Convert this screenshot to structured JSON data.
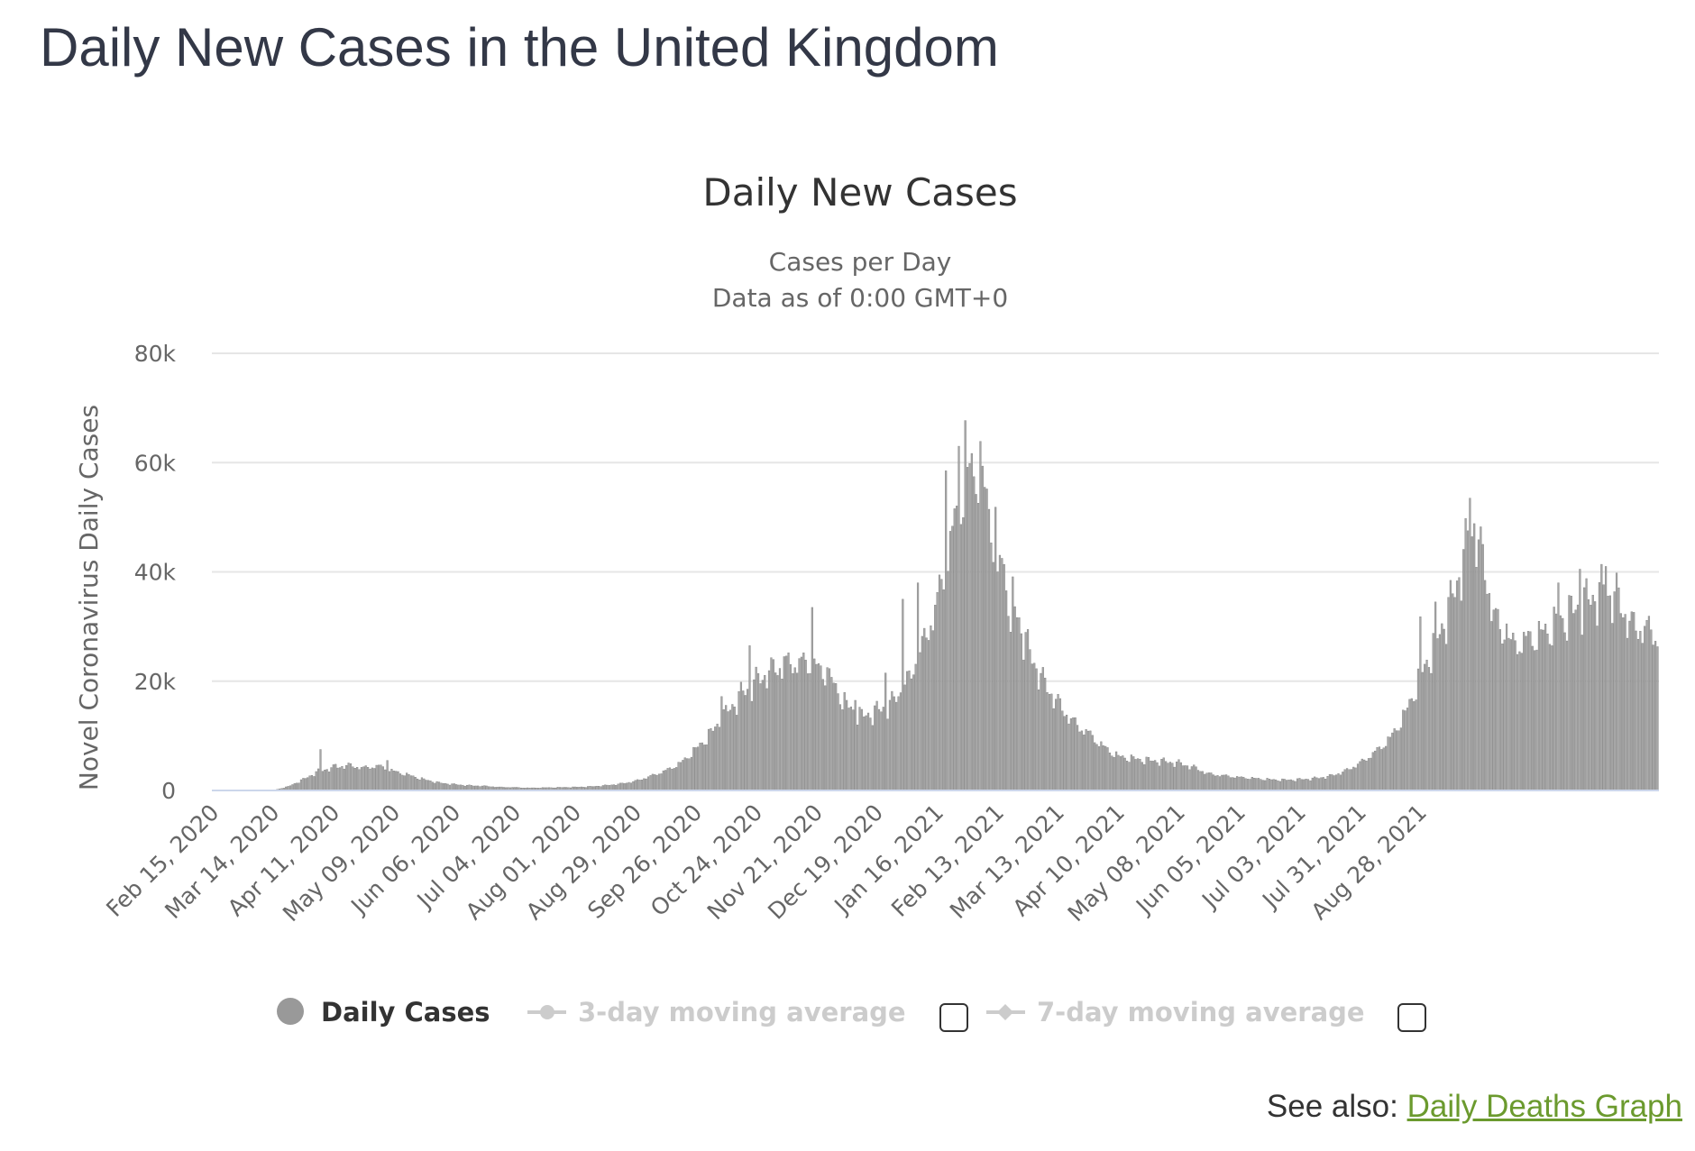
{
  "page": {
    "title": "Daily New Cases in the United Kingdom"
  },
  "see_also": {
    "prefix": "See also:",
    "link_label": "Daily Deaths Graph"
  },
  "legend": {
    "daily_cases": "Daily Cases",
    "ma3": "3-day moving average",
    "ma7": "7-day moving average"
  },
  "colors": {
    "bar": "#a6a6a6",
    "bar_stroke": "#7f7f7f",
    "grid": "#e6e6e6",
    "axis": "#ccd6eb",
    "link": "#6b9a2e",
    "legend_off": "#cccccc"
  },
  "chart_data": {
    "type": "bar",
    "title": "Daily New Cases",
    "subtitle_lines": [
      "Cases per Day",
      "Data as of 0:00 GMT+0"
    ],
    "ylabel": "Novel Coronavirus Daily Cases",
    "xlabel": "",
    "ylim": [
      0,
      80000
    ],
    "yticks": [
      0,
      20000,
      40000,
      60000,
      80000
    ],
    "ytick_labels": [
      "0",
      "20k",
      "40k",
      "60k",
      "80k"
    ],
    "x_start": "Feb 15, 2020",
    "x_end": "Sep 17, 2021",
    "xtick_labels": [
      "Feb 15, 2020",
      "Mar 14, 2020",
      "Apr 11, 2020",
      "May 09, 2020",
      "Jun 06, 2020",
      "Jul 04, 2020",
      "Aug 01, 2020",
      "Aug 29, 2020",
      "Sep 26, 2020",
      "Oct 24, 2020",
      "Nov 21, 2020",
      "Dec 19, 2020",
      "Jan 16, 2021",
      "Feb 13, 2021",
      "Mar 13, 2021",
      "Apr 10, 2021",
      "May 08, 2021",
      "Jun 05, 2021",
      "Jul 03, 2021",
      "Jul 31, 2021",
      "Aug 28, 2021"
    ],
    "grid": true,
    "legend_position": "bottom-center",
    "daily_trend_anchors": [
      [
        0,
        0
      ],
      [
        28,
        0
      ],
      [
        35,
        700
      ],
      [
        42,
        2000
      ],
      [
        49,
        3500
      ],
      [
        56,
        4200
      ],
      [
        63,
        4600
      ],
      [
        70,
        4100
      ],
      [
        77,
        4500
      ],
      [
        84,
        3500
      ],
      [
        91,
        2800
      ],
      [
        98,
        2000
      ],
      [
        105,
        1400
      ],
      [
        112,
        1100
      ],
      [
        119,
        900
      ],
      [
        126,
        800
      ],
      [
        133,
        600
      ],
      [
        140,
        550
      ],
      [
        147,
        450
      ],
      [
        154,
        500
      ],
      [
        161,
        550
      ],
      [
        168,
        600
      ],
      [
        175,
        700
      ],
      [
        182,
        900
      ],
      [
        189,
        1200
      ],
      [
        196,
        1700
      ],
      [
        203,
        2600
      ],
      [
        210,
        3600
      ],
      [
        217,
        5000
      ],
      [
        224,
        7500
      ],
      [
        231,
        10500
      ],
      [
        238,
        14000
      ],
      [
        245,
        17500
      ],
      [
        252,
        20000
      ],
      [
        259,
        22000
      ],
      [
        266,
        23000
      ],
      [
        273,
        23500
      ],
      [
        280,
        22500
      ],
      [
        287,
        20000
      ],
      [
        294,
        15500
      ],
      [
        301,
        13500
      ],
      [
        308,
        14500
      ],
      [
        315,
        16000
      ],
      [
        322,
        19500
      ],
      [
        329,
        26000
      ],
      [
        336,
        34500
      ],
      [
        343,
        47000
      ],
      [
        350,
        57500
      ],
      [
        354,
        60000
      ],
      [
        357,
        56500
      ],
      [
        364,
        45000
      ],
      [
        371,
        35000
      ],
      [
        378,
        26000
      ],
      [
        385,
        20000
      ],
      [
        392,
        16000
      ],
      [
        399,
        12500
      ],
      [
        406,
        10500
      ],
      [
        413,
        8000
      ],
      [
        420,
        6200
      ],
      [
        427,
        5800
      ],
      [
        434,
        5500
      ],
      [
        441,
        5300
      ],
      [
        448,
        5000
      ],
      [
        455,
        4200
      ],
      [
        462,
        3000
      ],
      [
        469,
        2700
      ],
      [
        476,
        2400
      ],
      [
        483,
        2200
      ],
      [
        490,
        2000
      ],
      [
        497,
        1900
      ],
      [
        504,
        2000
      ],
      [
        511,
        2200
      ],
      [
        518,
        2600
      ],
      [
        525,
        3500
      ],
      [
        532,
        5000
      ],
      [
        539,
        7000
      ],
      [
        546,
        9500
      ],
      [
        553,
        14000
      ],
      [
        560,
        21000
      ],
      [
        567,
        27000
      ],
      [
        574,
        34000
      ],
      [
        581,
        44000
      ],
      [
        585,
        49000
      ],
      [
        588,
        43500
      ],
      [
        595,
        31000
      ],
      [
        602,
        26500
      ],
      [
        609,
        27500
      ],
      [
        616,
        28500
      ],
      [
        623,
        30500
      ],
      [
        630,
        32500
      ],
      [
        637,
        34500
      ],
      [
        644,
        36500
      ],
      [
        651,
        35500
      ],
      [
        658,
        30000
      ],
      [
        665,
        29500
      ],
      [
        670,
        28500
      ]
    ],
    "daily_spikes": [
      [
        50,
        7500
      ],
      [
        57,
        4800
      ],
      [
        81,
        5500
      ],
      [
        236,
        17200
      ],
      [
        249,
        26500
      ],
      [
        265,
        24500
      ],
      [
        278,
        33500
      ],
      [
        285,
        22500
      ],
      [
        298,
        16500
      ],
      [
        312,
        21500
      ],
      [
        320,
        35000
      ],
      [
        327,
        38000
      ],
      [
        340,
        58500
      ],
      [
        346,
        63000
      ],
      [
        349,
        67700
      ],
      [
        358,
        55500
      ],
      [
        364,
        40000
      ],
      [
        370,
        29000
      ],
      [
        560,
        31800
      ],
      [
        567,
        34500
      ],
      [
        583,
        53500
      ],
      [
        600,
        30500
      ],
      [
        624,
        38000
      ],
      [
        634,
        40500
      ],
      [
        646,
        41000
      ]
    ]
  }
}
